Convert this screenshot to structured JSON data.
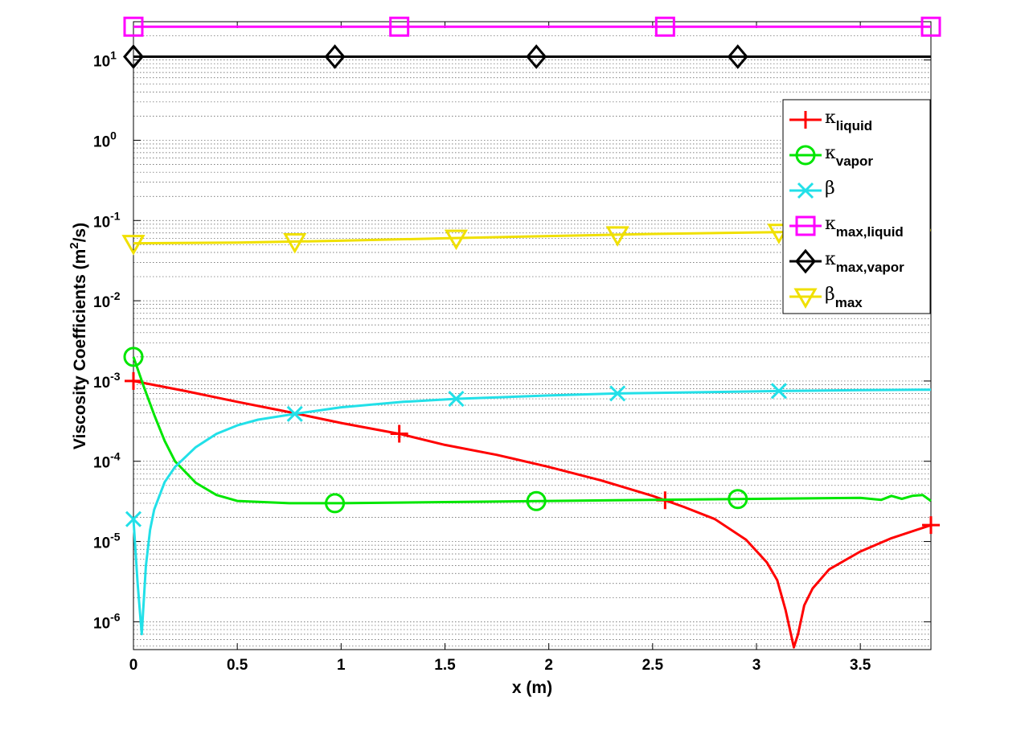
{
  "chart_data": {
    "type": "line",
    "xlabel": "x (m)",
    "ylabel": "Viscosity Coefficients (m",
    "ylabel_sup": "2",
    "ylabel_tail": "/s)",
    "xlim": [
      0,
      3.84
    ],
    "ylim": [
      4.5e-07,
      30
    ],
    "yscale": "log",
    "grid": "minor dotted horizontal",
    "legend_position": "top-right",
    "x_ticks": [
      "0",
      "0.5",
      "1",
      "1.5",
      "2",
      "2.5",
      "3",
      "3.5"
    ],
    "x_tick_values": [
      0,
      0.5,
      1,
      1.5,
      2,
      2.5,
      3,
      3.5
    ],
    "y_tick_base": "10",
    "y_tick_exponents": [
      "-6",
      "-5",
      "-4",
      "-3",
      "-2",
      "-1",
      "0",
      "1"
    ],
    "series": [
      {
        "name_main": "κ",
        "name_sub": "liquid",
        "color": "#ff0000",
        "marker": "plus",
        "x": [
          0,
          0.25,
          0.5,
          0.75,
          1.0,
          1.28,
          1.5,
          1.75,
          2.0,
          2.25,
          2.5,
          2.65,
          2.8,
          2.95,
          3.05,
          3.1,
          3.14,
          3.18,
          3.2,
          3.23,
          3.27,
          3.35,
          3.5,
          3.65,
          3.84
        ],
        "y": [
          0.001,
          0.00075,
          0.00055,
          0.00041,
          0.0003,
          0.00022,
          0.00016,
          0.00012,
          8.5e-05,
          5.8e-05,
          3.7e-05,
          2.7e-05,
          1.9e-05,
          1.05e-05,
          5.5e-06,
          3.3e-06,
          1.4e-06,
          4.8e-07,
          7e-07,
          1.6e-06,
          2.6e-06,
          4.5e-06,
          7.5e-06,
          1.1e-05,
          1.6e-05
        ],
        "marker_x": [
          0,
          1.28,
          2.56,
          3.84
        ]
      },
      {
        "name_main": "κ",
        "name_sub": "vapor",
        "color": "#00e600",
        "marker": "circle",
        "x": [
          0,
          0.05,
          0.1,
          0.15,
          0.2,
          0.3,
          0.4,
          0.5,
          0.75,
          1.0,
          1.5,
          2.0,
          2.5,
          3.0,
          3.5,
          3.6,
          3.65,
          3.7,
          3.75,
          3.8,
          3.84
        ],
        "y": [
          0.002,
          0.00085,
          0.00038,
          0.00018,
          0.0001,
          5.4e-05,
          3.8e-05,
          3.2e-05,
          3e-05,
          3e-05,
          3.1e-05,
          3.2e-05,
          3.3e-05,
          3.4e-05,
          3.5e-05,
          3.3e-05,
          3.7e-05,
          3.4e-05,
          3.7e-05,
          3.8e-05,
          3.2e-05
        ],
        "marker_x": [
          0,
          0.97,
          1.94,
          2.91
        ]
      },
      {
        "name_main": "β",
        "name_sub": "",
        "color": "#22e0e8",
        "marker": "x",
        "x": [
          0,
          0.02,
          0.04,
          0.06,
          0.08,
          0.1,
          0.15,
          0.2,
          0.3,
          0.4,
          0.5,
          0.6,
          0.78,
          1.0,
          1.3,
          1.55,
          2.0,
          2.33,
          2.8,
          3.1,
          3.5,
          3.84
        ],
        "y": [
          1.9e-05,
          3e-06,
          7e-07,
          5e-06,
          1.4e-05,
          2.5e-05,
          5.5e-05,
          8.5e-05,
          0.00015,
          0.00022,
          0.00028,
          0.00033,
          0.00039,
          0.00047,
          0.00055,
          0.0006,
          0.00066,
          0.0007,
          0.00073,
          0.00075,
          0.00077,
          0.00078
        ],
        "marker_x": [
          0,
          0.777,
          1.554,
          2.331,
          3.108
        ]
      },
      {
        "name_main": "κ",
        "name_sub": "max,liquid",
        "color": "#ff00ff",
        "marker": "square",
        "x": [
          0,
          3.84
        ],
        "y": [
          26,
          26
        ],
        "marker_x": [
          0,
          1.28,
          2.56,
          3.84
        ]
      },
      {
        "name_main": "κ",
        "name_sub": "max,vapor",
        "color": "#000000",
        "marker": "diamond",
        "x": [
          0,
          3.84
        ],
        "y": [
          11,
          11
        ],
        "marker_x": [
          0,
          0.97,
          1.94,
          2.91
        ]
      },
      {
        "name_main": "β",
        "name_sub": "max",
        "color": "#f0e000",
        "marker": "triangle-down",
        "x": [
          0,
          0.5,
          1.0,
          1.5,
          2.0,
          2.5,
          3.0,
          3.5,
          3.84
        ],
        "y": [
          0.052,
          0.053,
          0.056,
          0.06,
          0.064,
          0.068,
          0.071,
          0.074,
          0.076
        ],
        "marker_x": [
          0,
          0.777,
          1.554,
          2.331,
          3.108
        ]
      }
    ]
  }
}
